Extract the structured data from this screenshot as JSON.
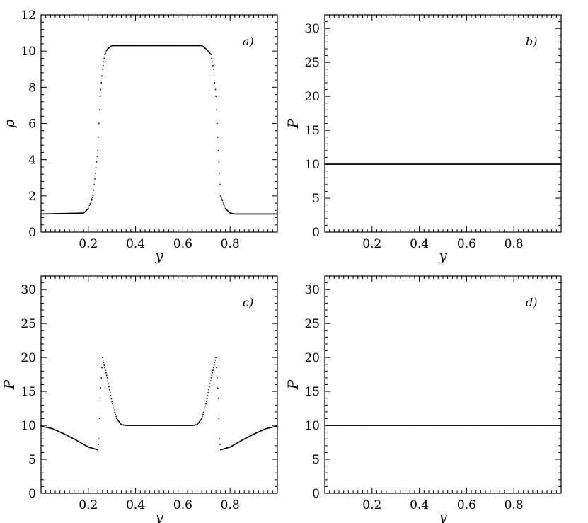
{
  "chart_data": [
    {
      "type": "scatter",
      "panel_label": "a)",
      "xlabel": "y",
      "ylabel": "ρ",
      "xlim": [
        0,
        1
      ],
      "ylim": [
        0,
        12
      ],
      "xticks": [
        0.2,
        0.4,
        0.6,
        0.8
      ],
      "xtick_labels": [
        "0.2",
        "0.4",
        "0.6",
        "0.8"
      ],
      "yticks": [
        0,
        2,
        4,
        6,
        8,
        10,
        12
      ],
      "ytick_labels": [
        "0",
        "2",
        "4",
        "6",
        "8",
        "10",
        "12"
      ],
      "grid": false,
      "profile": {
        "x": [
          0.0,
          0.18,
          0.2,
          0.22,
          0.24,
          0.25,
          0.26,
          0.27,
          0.28,
          0.3,
          0.32,
          0.5,
          0.68,
          0.7,
          0.72,
          0.73,
          0.74,
          0.75,
          0.76,
          0.78,
          0.8,
          0.82,
          1.0
        ],
        "y": [
          1.0,
          1.05,
          1.3,
          2.0,
          4.5,
          7.5,
          9.0,
          9.8,
          10.1,
          10.3,
          10.3,
          10.3,
          10.3,
          10.1,
          9.8,
          9.0,
          7.5,
          4.5,
          2.0,
          1.3,
          1.05,
          1.0,
          1.0
        ]
      }
    },
    {
      "type": "scatter",
      "panel_label": "b)",
      "xlabel": "y",
      "ylabel": "P",
      "xlim": [
        0,
        1
      ],
      "ylim": [
        0,
        32
      ],
      "xticks": [
        0.2,
        0.4,
        0.6,
        0.8
      ],
      "xtick_labels": [
        "0.2",
        "0.4",
        "0.6",
        "0.8"
      ],
      "yticks": [
        0,
        5,
        10,
        15,
        20,
        25,
        30
      ],
      "ytick_labels": [
        "0",
        "5",
        "10",
        "15",
        "20",
        "25",
        "30"
      ],
      "grid": false,
      "profile": {
        "x": [
          0.0,
          1.0
        ],
        "y": [
          10.0,
          10.0
        ]
      }
    },
    {
      "type": "scatter",
      "panel_label": "c)",
      "xlabel": "y",
      "ylabel": "P",
      "xlim": [
        0,
        1
      ],
      "ylim": [
        0,
        32
      ],
      "xticks": [
        0.2,
        0.4,
        0.6,
        0.8
      ],
      "xtick_labels": [
        "0.2",
        "0.4",
        "0.6",
        "0.8"
      ],
      "yticks": [
        0,
        5,
        10,
        15,
        20,
        25,
        30
      ],
      "ytick_labels": [
        "0",
        "5",
        "10",
        "15",
        "20",
        "25",
        "30"
      ],
      "grid": false,
      "profile": {
        "x": [
          0.0,
          0.05,
          0.1,
          0.15,
          0.2,
          0.24,
          0.245,
          0.25,
          0.26,
          0.28,
          0.3,
          0.32,
          0.34,
          0.36,
          0.5,
          0.64,
          0.66,
          0.68,
          0.7,
          0.72,
          0.74,
          0.75,
          0.755,
          0.76,
          0.8,
          0.85,
          0.9,
          0.95,
          1.0
        ],
        "y": [
          9.9,
          9.5,
          8.7,
          7.8,
          6.8,
          6.4,
          8.0,
          14.0,
          20.0,
          17.0,
          13.5,
          11.0,
          10.1,
          10.0,
          10.0,
          10.0,
          10.1,
          11.0,
          13.5,
          17.0,
          20.0,
          14.0,
          8.0,
          6.4,
          6.8,
          7.8,
          8.7,
          9.5,
          9.9
        ]
      }
    },
    {
      "type": "scatter",
      "panel_label": "d)",
      "xlabel": "y",
      "ylabel": "P",
      "xlim": [
        0,
        1
      ],
      "ylim": [
        0,
        32
      ],
      "xticks": [
        0.2,
        0.4,
        0.6,
        0.8
      ],
      "xtick_labels": [
        "0.2",
        "0.4",
        "0.6",
        "0.8"
      ],
      "yticks": [
        0,
        5,
        10,
        15,
        20,
        25,
        30
      ],
      "ytick_labels": [
        "0",
        "5",
        "10",
        "15",
        "20",
        "25",
        "30"
      ],
      "grid": false,
      "profile": {
        "x": [
          0.0,
          1.0
        ],
        "y": [
          10.0,
          10.0
        ]
      }
    }
  ]
}
